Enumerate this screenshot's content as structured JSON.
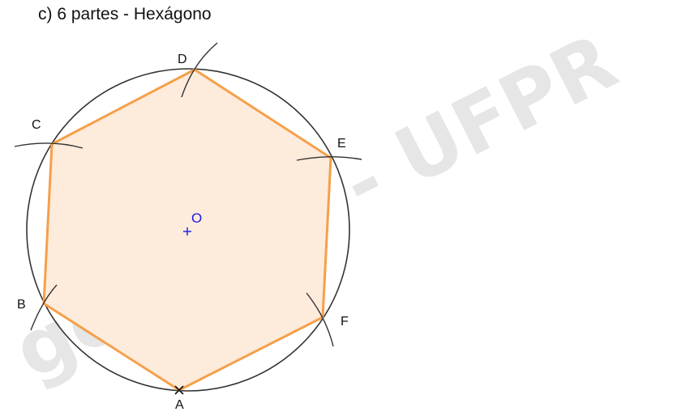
{
  "title": "c) 6 partes - Hexágono",
  "watermark": "geegraf - UFPR",
  "center": {
    "label": "O",
    "marker": "+"
  },
  "points": [
    {
      "id": "A",
      "label": "A"
    },
    {
      "id": "B",
      "label": "B"
    },
    {
      "id": "C",
      "label": "C"
    },
    {
      "id": "D",
      "label": "D"
    },
    {
      "id": "E",
      "label": "E"
    },
    {
      "id": "F",
      "label": "F"
    }
  ],
  "colors": {
    "circle": "#333333",
    "hexagon_stroke": "#f5a04a",
    "hexagon_fill": "#fdebdc",
    "center": "#1a1ae6",
    "arcs": "#333333"
  }
}
